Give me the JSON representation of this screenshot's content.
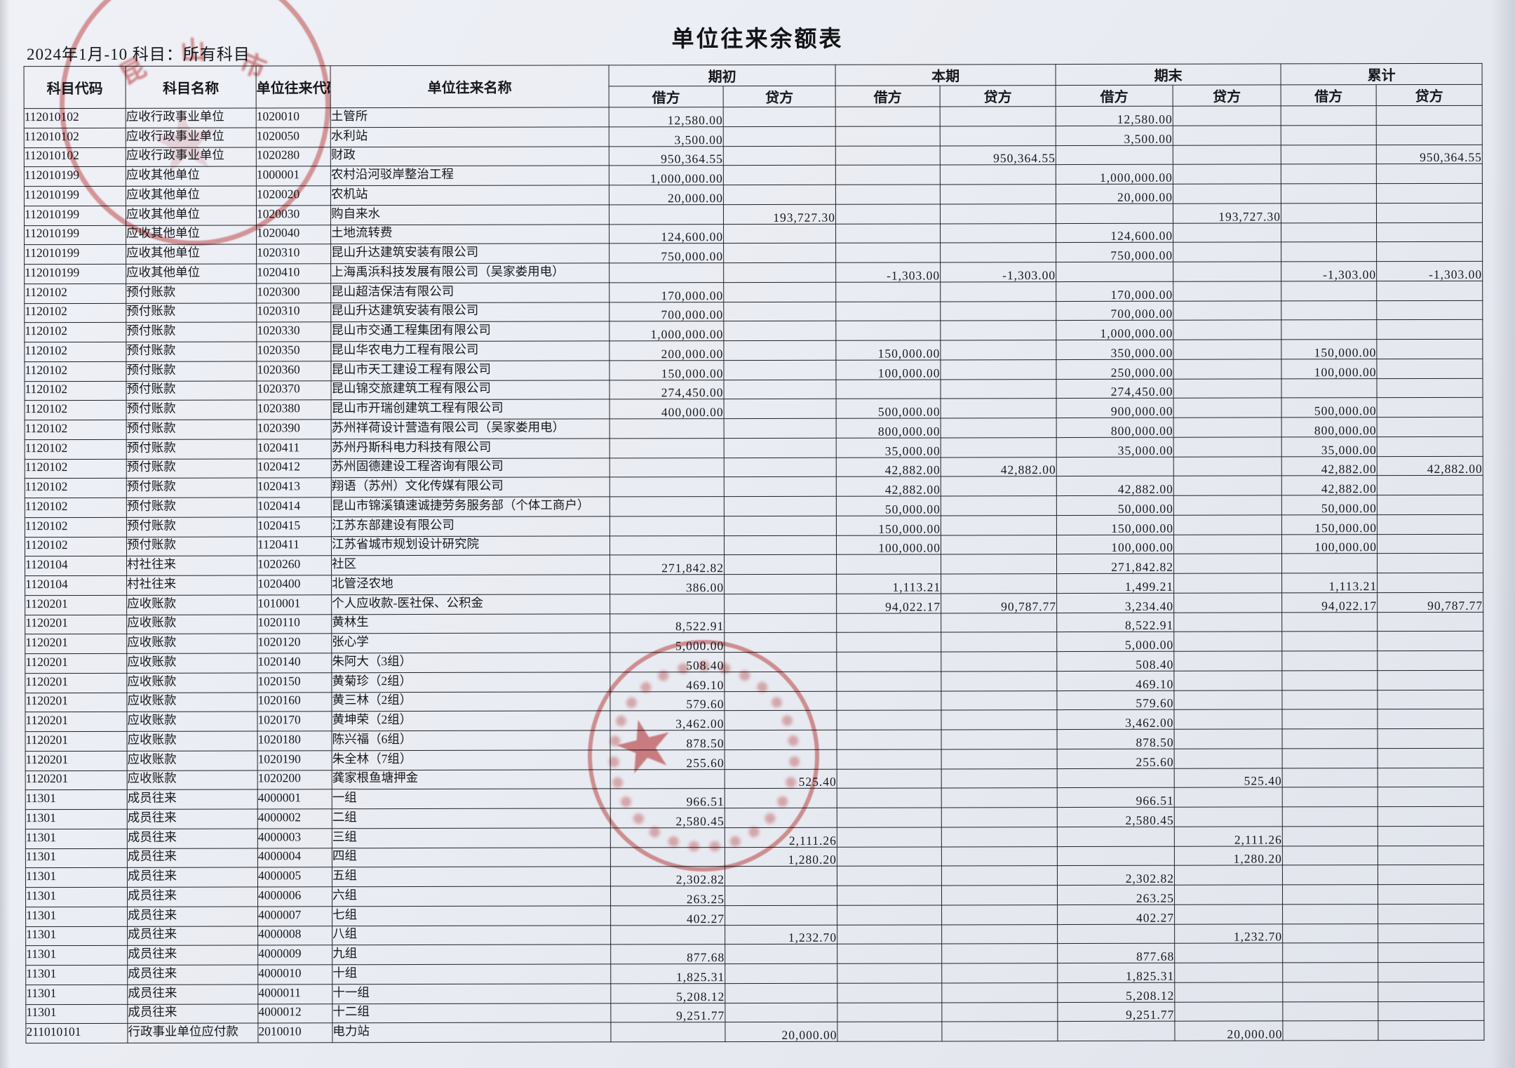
{
  "page": {
    "title": "单位往来余额表",
    "period_label": "2024年1月-10 科目：所有科目"
  },
  "table": {
    "columns": {
      "code": "科目代码",
      "name": "科目名称",
      "unit_code": "单位往来代码",
      "unit_name": "单位往来名称",
      "groups": [
        "期初",
        "本期",
        "期末",
        "累计"
      ],
      "debit": "借方",
      "credit": "贷方"
    },
    "rows": [
      [
        "112010102",
        "应收行政事业单位",
        "1020010",
        "土管所",
        "12,580.00",
        "",
        "",
        "",
        "12,580.00",
        "",
        "",
        ""
      ],
      [
        "112010102",
        "应收行政事业单位",
        "1020050",
        "水利站",
        "3,500.00",
        "",
        "",
        "",
        "3,500.00",
        "",
        "",
        ""
      ],
      [
        "112010102",
        "应收行政事业单位",
        "1020280",
        "财政",
        "950,364.55",
        "",
        "",
        "950,364.55",
        "",
        "",
        "",
        "950,364.55"
      ],
      [
        "112010199",
        "应收其他单位",
        "1000001",
        "农村沿河驳岸整治工程",
        "1,000,000.00",
        "",
        "",
        "",
        "1,000,000.00",
        "",
        "",
        ""
      ],
      [
        "112010199",
        "应收其他单位",
        "1020020",
        "农机站",
        "20,000.00",
        "",
        "",
        "",
        "20,000.00",
        "",
        "",
        ""
      ],
      [
        "112010199",
        "应收其他单位",
        "1020030",
        "购自来水",
        "",
        "193,727.30",
        "",
        "",
        "",
        "193,727.30",
        "",
        ""
      ],
      [
        "112010199",
        "应收其他单位",
        "1020040",
        "土地流转费",
        "124,600.00",
        "",
        "",
        "",
        "124,600.00",
        "",
        "",
        ""
      ],
      [
        "112010199",
        "应收其他单位",
        "1020310",
        "昆山升达建筑安装有限公司",
        "750,000.00",
        "",
        "",
        "",
        "750,000.00",
        "",
        "",
        ""
      ],
      [
        "112010199",
        "应收其他单位",
        "1020410",
        "上海禹浜科技发展有限公司（吴家娄用电）",
        "",
        "",
        "-1,303.00",
        "-1,303.00",
        "",
        "",
        "-1,303.00",
        "-1,303.00"
      ],
      [
        "1120102",
        "预付账款",
        "1020300",
        "昆山超洁保洁有限公司",
        "170,000.00",
        "",
        "",
        "",
        "170,000.00",
        "",
        "",
        ""
      ],
      [
        "1120102",
        "预付账款",
        "1020310",
        "昆山升达建筑安装有限公司",
        "700,000.00",
        "",
        "",
        "",
        "700,000.00",
        "",
        "",
        ""
      ],
      [
        "1120102",
        "预付账款",
        "1020330",
        "昆山市交通工程集团有限公司",
        "1,000,000.00",
        "",
        "",
        "",
        "1,000,000.00",
        "",
        "",
        ""
      ],
      [
        "1120102",
        "预付账款",
        "1020350",
        "昆山华农电力工程有限公司",
        "200,000.00",
        "",
        "150,000.00",
        "",
        "350,000.00",
        "",
        "150,000.00",
        ""
      ],
      [
        "1120102",
        "预付账款",
        "1020360",
        "昆山市天工建设工程有限公司",
        "150,000.00",
        "",
        "100,000.00",
        "",
        "250,000.00",
        "",
        "100,000.00",
        ""
      ],
      [
        "1120102",
        "预付账款",
        "1020370",
        "昆山锦交旅建筑工程有限公司",
        "274,450.00",
        "",
        "",
        "",
        "274,450.00",
        "",
        "",
        ""
      ],
      [
        "1120102",
        "预付账款",
        "1020380",
        "昆山市开瑞创建筑工程有限公司",
        "400,000.00",
        "",
        "500,000.00",
        "",
        "900,000.00",
        "",
        "500,000.00",
        ""
      ],
      [
        "1120102",
        "预付账款",
        "1020390",
        "苏州祥荷设计营造有限公司（吴家娄用电）",
        "",
        "",
        "800,000.00",
        "",
        "800,000.00",
        "",
        "800,000.00",
        ""
      ],
      [
        "1120102",
        "预付账款",
        "1020411",
        "苏州丹斯科电力科技有限公司",
        "",
        "",
        "35,000.00",
        "",
        "35,000.00",
        "",
        "35,000.00",
        ""
      ],
      [
        "1120102",
        "预付账款",
        "1020412",
        "苏州固德建设工程咨询有限公司",
        "",
        "",
        "42,882.00",
        "42,882.00",
        "",
        "",
        "42,882.00",
        "42,882.00"
      ],
      [
        "1120102",
        "预付账款",
        "1020413",
        "翔语（苏州）文化传媒有限公司",
        "",
        "",
        "42,882.00",
        "",
        "42,882.00",
        "",
        "42,882.00",
        ""
      ],
      [
        "1120102",
        "预付账款",
        "1020414",
        "昆山市锦溪镇速诚捷劳务服务部（个体工商户）",
        "",
        "",
        "50,000.00",
        "",
        "50,000.00",
        "",
        "50,000.00",
        ""
      ],
      [
        "1120102",
        "预付账款",
        "1020415",
        "江苏东部建设有限公司",
        "",
        "",
        "150,000.00",
        "",
        "150,000.00",
        "",
        "150,000.00",
        ""
      ],
      [
        "1120102",
        "预付账款",
        "1120411",
        "江苏省城市规划设计研究院",
        "",
        "",
        "100,000.00",
        "",
        "100,000.00",
        "",
        "100,000.00",
        ""
      ],
      [
        "1120104",
        "村社往来",
        "1020260",
        "社区",
        "271,842.82",
        "",
        "",
        "",
        "271,842.82",
        "",
        "",
        ""
      ],
      [
        "1120104",
        "村社往来",
        "1020400",
        "北管泾农地",
        "386.00",
        "",
        "1,113.21",
        "",
        "1,499.21",
        "",
        "1,113.21",
        ""
      ],
      [
        "1120201",
        "应收账款",
        "1010001",
        "个人应收款-医社保、公积金",
        "",
        "",
        "94,022.17",
        "90,787.77",
        "3,234.40",
        "",
        "94,022.17",
        "90,787.77"
      ],
      [
        "1120201",
        "应收账款",
        "1020110",
        "黄林生",
        "8,522.91",
        "",
        "",
        "",
        "8,522.91",
        "",
        "",
        ""
      ],
      [
        "1120201",
        "应收账款",
        "1020120",
        "张心学",
        "5,000.00",
        "",
        "",
        "",
        "5,000.00",
        "",
        "",
        ""
      ],
      [
        "1120201",
        "应收账款",
        "1020140",
        "朱阿大（3组）",
        "508.40",
        "",
        "",
        "",
        "508.40",
        "",
        "",
        ""
      ],
      [
        "1120201",
        "应收账款",
        "1020150",
        "黄菊珍（2组）",
        "469.10",
        "",
        "",
        "",
        "469.10",
        "",
        "",
        ""
      ],
      [
        "1120201",
        "应收账款",
        "1020160",
        "黄三林（2组）",
        "579.60",
        "",
        "",
        "",
        "579.60",
        "",
        "",
        ""
      ],
      [
        "1120201",
        "应收账款",
        "1020170",
        "黄坤荣（2组）",
        "3,462.00",
        "",
        "",
        "",
        "3,462.00",
        "",
        "",
        ""
      ],
      [
        "1120201",
        "应收账款",
        "1020180",
        "陈兴福（6组）",
        "878.50",
        "",
        "",
        "",
        "878.50",
        "",
        "",
        ""
      ],
      [
        "1120201",
        "应收账款",
        "1020190",
        "朱全林（7组）",
        "255.60",
        "",
        "",
        "",
        "255.60",
        "",
        "",
        ""
      ],
      [
        "1120201",
        "应收账款",
        "1020200",
        "龚家根鱼塘押金",
        "",
        "525.40",
        "",
        "",
        "",
        "525.40",
        "",
        ""
      ],
      [
        "11301",
        "成员往来",
        "4000001",
        "一组",
        "966.51",
        "",
        "",
        "",
        "966.51",
        "",
        "",
        ""
      ],
      [
        "11301",
        "成员往来",
        "4000002",
        "二组",
        "2,580.45",
        "",
        "",
        "",
        "2,580.45",
        "",
        "",
        ""
      ],
      [
        "11301",
        "成员往来",
        "4000003",
        "三组",
        "",
        "2,111.26",
        "",
        "",
        "",
        "2,111.26",
        "",
        ""
      ],
      [
        "11301",
        "成员往来",
        "4000004",
        "四组",
        "",
        "1,280.20",
        "",
        "",
        "",
        "1,280.20",
        "",
        ""
      ],
      [
        "11301",
        "成员往来",
        "4000005",
        "五组",
        "2,302.82",
        "",
        "",
        "",
        "2,302.82",
        "",
        "",
        ""
      ],
      [
        "11301",
        "成员往来",
        "4000006",
        "六组",
        "263.25",
        "",
        "",
        "",
        "263.25",
        "",
        "",
        ""
      ],
      [
        "11301",
        "成员往来",
        "4000007",
        "七组",
        "402.27",
        "",
        "",
        "",
        "402.27",
        "",
        "",
        ""
      ],
      [
        "11301",
        "成员往来",
        "4000008",
        "八组",
        "",
        "1,232.70",
        "",
        "",
        "",
        "1,232.70",
        "",
        ""
      ],
      [
        "11301",
        "成员往来",
        "4000009",
        "九组",
        "877.68",
        "",
        "",
        "",
        "877.68",
        "",
        "",
        ""
      ],
      [
        "11301",
        "成员往来",
        "4000010",
        "十组",
        "1,825.31",
        "",
        "",
        "",
        "1,825.31",
        "",
        "",
        ""
      ],
      [
        "11301",
        "成员往来",
        "4000011",
        "十一组",
        "5,208.12",
        "",
        "",
        "",
        "5,208.12",
        "",
        "",
        ""
      ],
      [
        "11301",
        "成员往来",
        "4000012",
        "十二组",
        "9,251.77",
        "",
        "",
        "",
        "9,251.77",
        "",
        "",
        ""
      ],
      [
        "211010101",
        "行政事业单位应付款",
        "2010010",
        "电力站",
        "",
        "20,000.00",
        "",
        "",
        "",
        "20,000.00",
        "",
        ""
      ]
    ]
  },
  "stamps": {
    "ink_color": "#c73e3c",
    "top_left_arc_text": [
      "昆",
      "山",
      "市"
    ],
    "star_glyph": "★"
  }
}
